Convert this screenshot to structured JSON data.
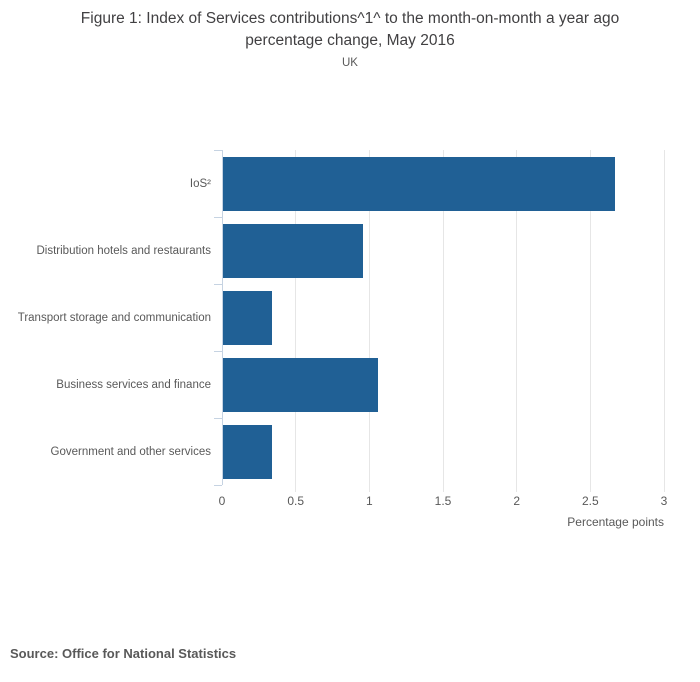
{
  "header": {
    "title": "Figure 1: Index of Services contributions^1^ to the month-on-month a year ago percentage change, May 2016",
    "subtitle": "UK"
  },
  "chart_data": {
    "type": "bar",
    "orientation": "horizontal",
    "title": "Figure 1: Index of Services contributions^1^ to the month-on-month a year ago percentage change, May 2016",
    "subtitle": "UK",
    "categories": [
      "IoS²",
      "Distribution hotels and restaurants",
      "Transport storage and communication",
      "Business services and finance",
      "Government and other services"
    ],
    "values": [
      2.66,
      0.95,
      0.33,
      1.05,
      0.33
    ],
    "xlabel": "Percentage points",
    "ylabel": "",
    "xlim": [
      0,
      3
    ],
    "xticks": [
      0,
      0.5,
      1,
      1.5,
      2,
      2.5,
      3
    ],
    "grid": true,
    "legend": "none",
    "bar_color": "#206095"
  },
  "footer": {
    "source": "Source: Office for National Statistics"
  },
  "colors": {
    "bar": "#206095",
    "axis": "#c6d3e2",
    "grid": "#e6e6e6",
    "text": "#595959",
    "title": "#414042"
  }
}
